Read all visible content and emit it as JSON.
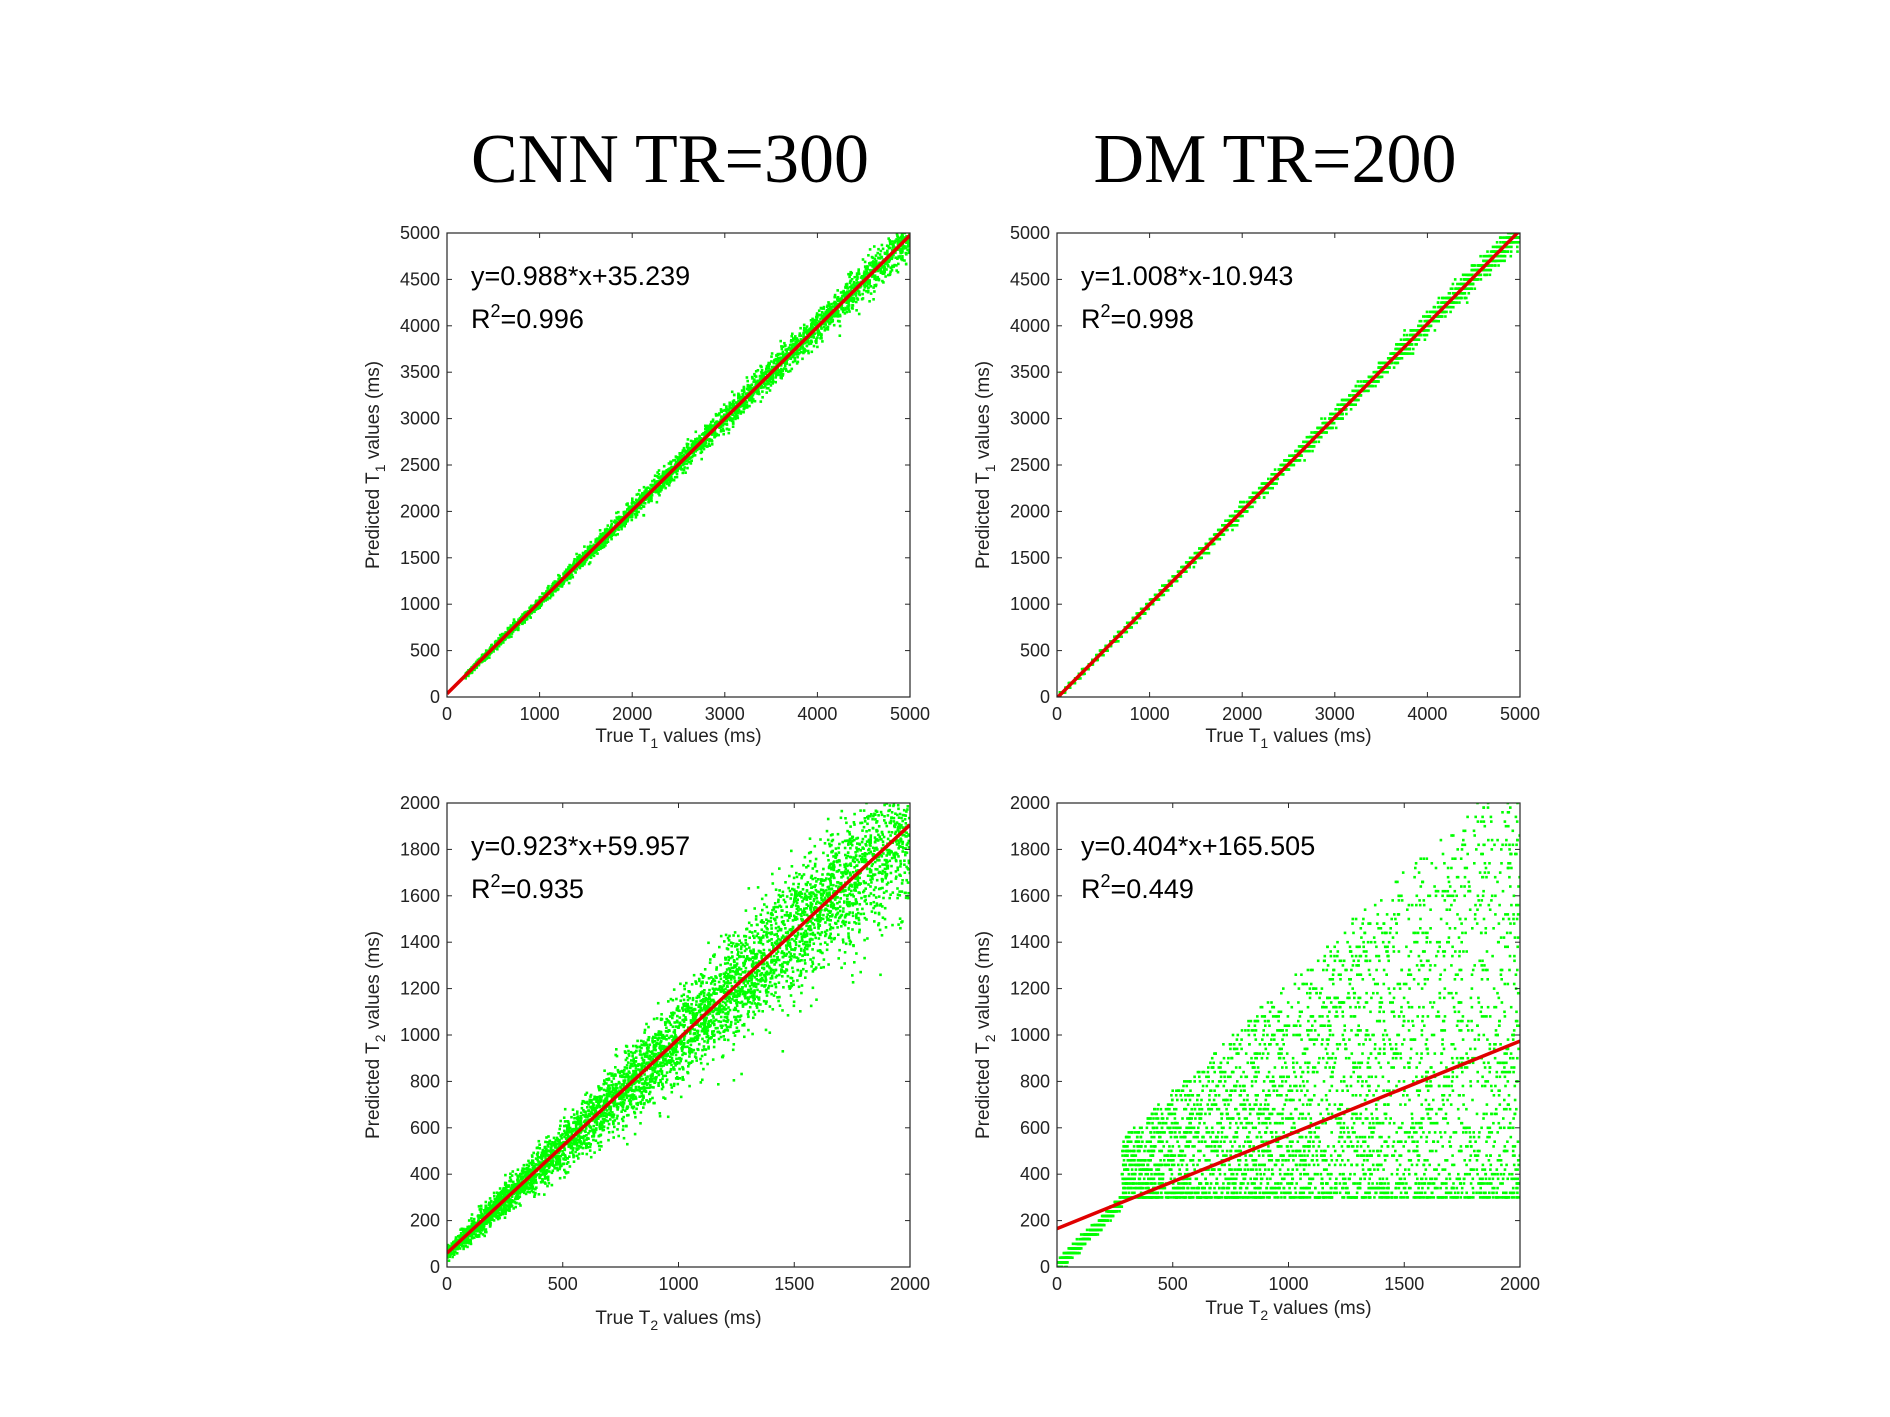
{
  "titles": {
    "left": "CNN TR=300",
    "right": "DM TR=200"
  },
  "colors": {
    "points": "#00ff00",
    "fit": "#e00000",
    "axes": "#262626"
  },
  "chart_data": [
    {
      "type": "scatter",
      "panel": "cnn-t1",
      "title": "",
      "xlabel": {
        "prefix": "True T",
        "sub": "1",
        "suffix": " values (ms)"
      },
      "ylabel": {
        "prefix": "Predicted T",
        "sub": "1",
        "suffix": " values (ms)"
      },
      "xlim": [
        0,
        5000
      ],
      "ylim": [
        0,
        5000
      ],
      "xticks": [
        0,
        1000,
        2000,
        3000,
        4000,
        5000
      ],
      "yticks": [
        0,
        500,
        1000,
        1500,
        2000,
        2500,
        3000,
        3500,
        4000,
        4500,
        5000
      ],
      "equation": "y=0.988*x+35.239",
      "r2_prefix": "R",
      "r2_sup": "2",
      "r2_value": "=0.996",
      "fit": {
        "slope": 0.988,
        "intercept": 35.239
      },
      "points": {
        "x_range": [
          200,
          5000
        ],
        "noise_sd": [
          15,
          110
        ],
        "count": 3500
      },
      "grid": false
    },
    {
      "type": "scatter",
      "panel": "dm-t1",
      "title": "",
      "xlabel": {
        "prefix": "True T",
        "sub": "1",
        "suffix": " values (ms)"
      },
      "ylabel": {
        "prefix": "Predicted T",
        "sub": "1",
        "suffix": " values (ms)"
      },
      "xlim": [
        0,
        5000
      ],
      "ylim": [
        0,
        5000
      ],
      "xticks": [
        0,
        1000,
        2000,
        3000,
        4000,
        5000
      ],
      "yticks": [
        0,
        500,
        1000,
        1500,
        2000,
        2500,
        3000,
        3500,
        4000,
        4500,
        5000
      ],
      "equation": "y=1.008*x-10.943",
      "r2_prefix": "R",
      "r2_sup": "2",
      "r2_value": "=0.998",
      "fit": {
        "slope": 1.008,
        "intercept": -10.943
      },
      "points": {
        "x_range": [
          0,
          5000
        ],
        "noise_sd": [
          5,
          70
        ],
        "count": 3000,
        "quantize_y": 50
      },
      "grid": false
    },
    {
      "type": "scatter",
      "panel": "cnn-t2",
      "title": "",
      "xlabel": {
        "prefix": "True T",
        "sub": "2",
        "suffix": " values (ms)"
      },
      "ylabel": {
        "prefix": "Predicted T",
        "sub": "2",
        "suffix": " values (ms)"
      },
      "xlim": [
        0,
        2000
      ],
      "ylim": [
        0,
        2000
      ],
      "xticks": [
        0,
        500,
        1000,
        1500,
        2000
      ],
      "yticks": [
        0,
        200,
        400,
        600,
        800,
        1000,
        1200,
        1400,
        1600,
        1800,
        2000
      ],
      "equation": "y=0.923*x+59.957",
      "r2_prefix": "R",
      "r2_sup": "2",
      "r2_value": "=0.935",
      "fit": {
        "slope": 0.923,
        "intercept": 59.957
      },
      "points": {
        "x_range": [
          0,
          2000
        ],
        "noise_sd": [
          15,
          170
        ],
        "count": 5000
      },
      "grid": false
    },
    {
      "type": "scatter",
      "panel": "dm-t2",
      "title": "",
      "xlabel": {
        "prefix": "True T",
        "sub": "2",
        "suffix": " values (ms)"
      },
      "ylabel": {
        "prefix": "Predicted T",
        "sub": "2",
        "suffix": " values (ms)"
      },
      "xlim": [
        0,
        2000
      ],
      "ylim": [
        0,
        2000
      ],
      "xticks": [
        0,
        500,
        1000,
        1500,
        2000
      ],
      "yticks": [
        0,
        200,
        400,
        600,
        800,
        1000,
        1200,
        1400,
        1600,
        1800,
        2000
      ],
      "equation": "y=0.404*x+165.505",
      "r2_prefix": "R",
      "r2_sup": "2",
      "r2_value": "=0.449",
      "fit": {
        "slope": 0.404,
        "intercept": 165.505
      },
      "points": {
        "x_range": [
          0,
          2000
        ],
        "y_floor": 290,
        "count": 4500,
        "quantize_y": 20
      },
      "grid": false
    }
  ]
}
